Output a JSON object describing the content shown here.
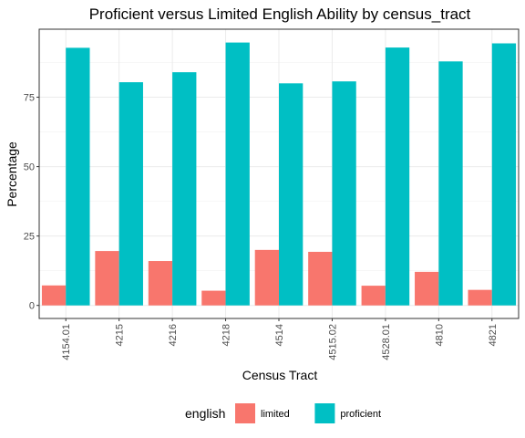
{
  "chart_data": {
    "type": "bar",
    "title": "Proficient versus Limited English Ability by census_tract",
    "xlabel": "Census Tract",
    "ylabel": "Percentage",
    "categories": [
      "4154.01",
      "4215",
      "4216",
      "4218",
      "4514",
      "4515.02",
      "4528.01",
      "4810",
      "4821"
    ],
    "series": [
      {
        "name": "limited",
        "color": "#F8766D",
        "values": [
          7.2,
          19.6,
          16.0,
          5.3,
          20.0,
          19.3,
          7.1,
          12.1,
          5.6
        ]
      },
      {
        "name": "proficient",
        "color": "#00BFC4",
        "values": [
          92.8,
          80.4,
          84.0,
          94.7,
          80.0,
          80.7,
          92.9,
          87.9,
          94.4
        ]
      }
    ],
    "ylim": [
      -4.7,
      99.5
    ],
    "yticks": [
      0,
      25,
      50,
      75
    ],
    "legend_title": "english",
    "legend_position": "bottom",
    "grid": true
  }
}
